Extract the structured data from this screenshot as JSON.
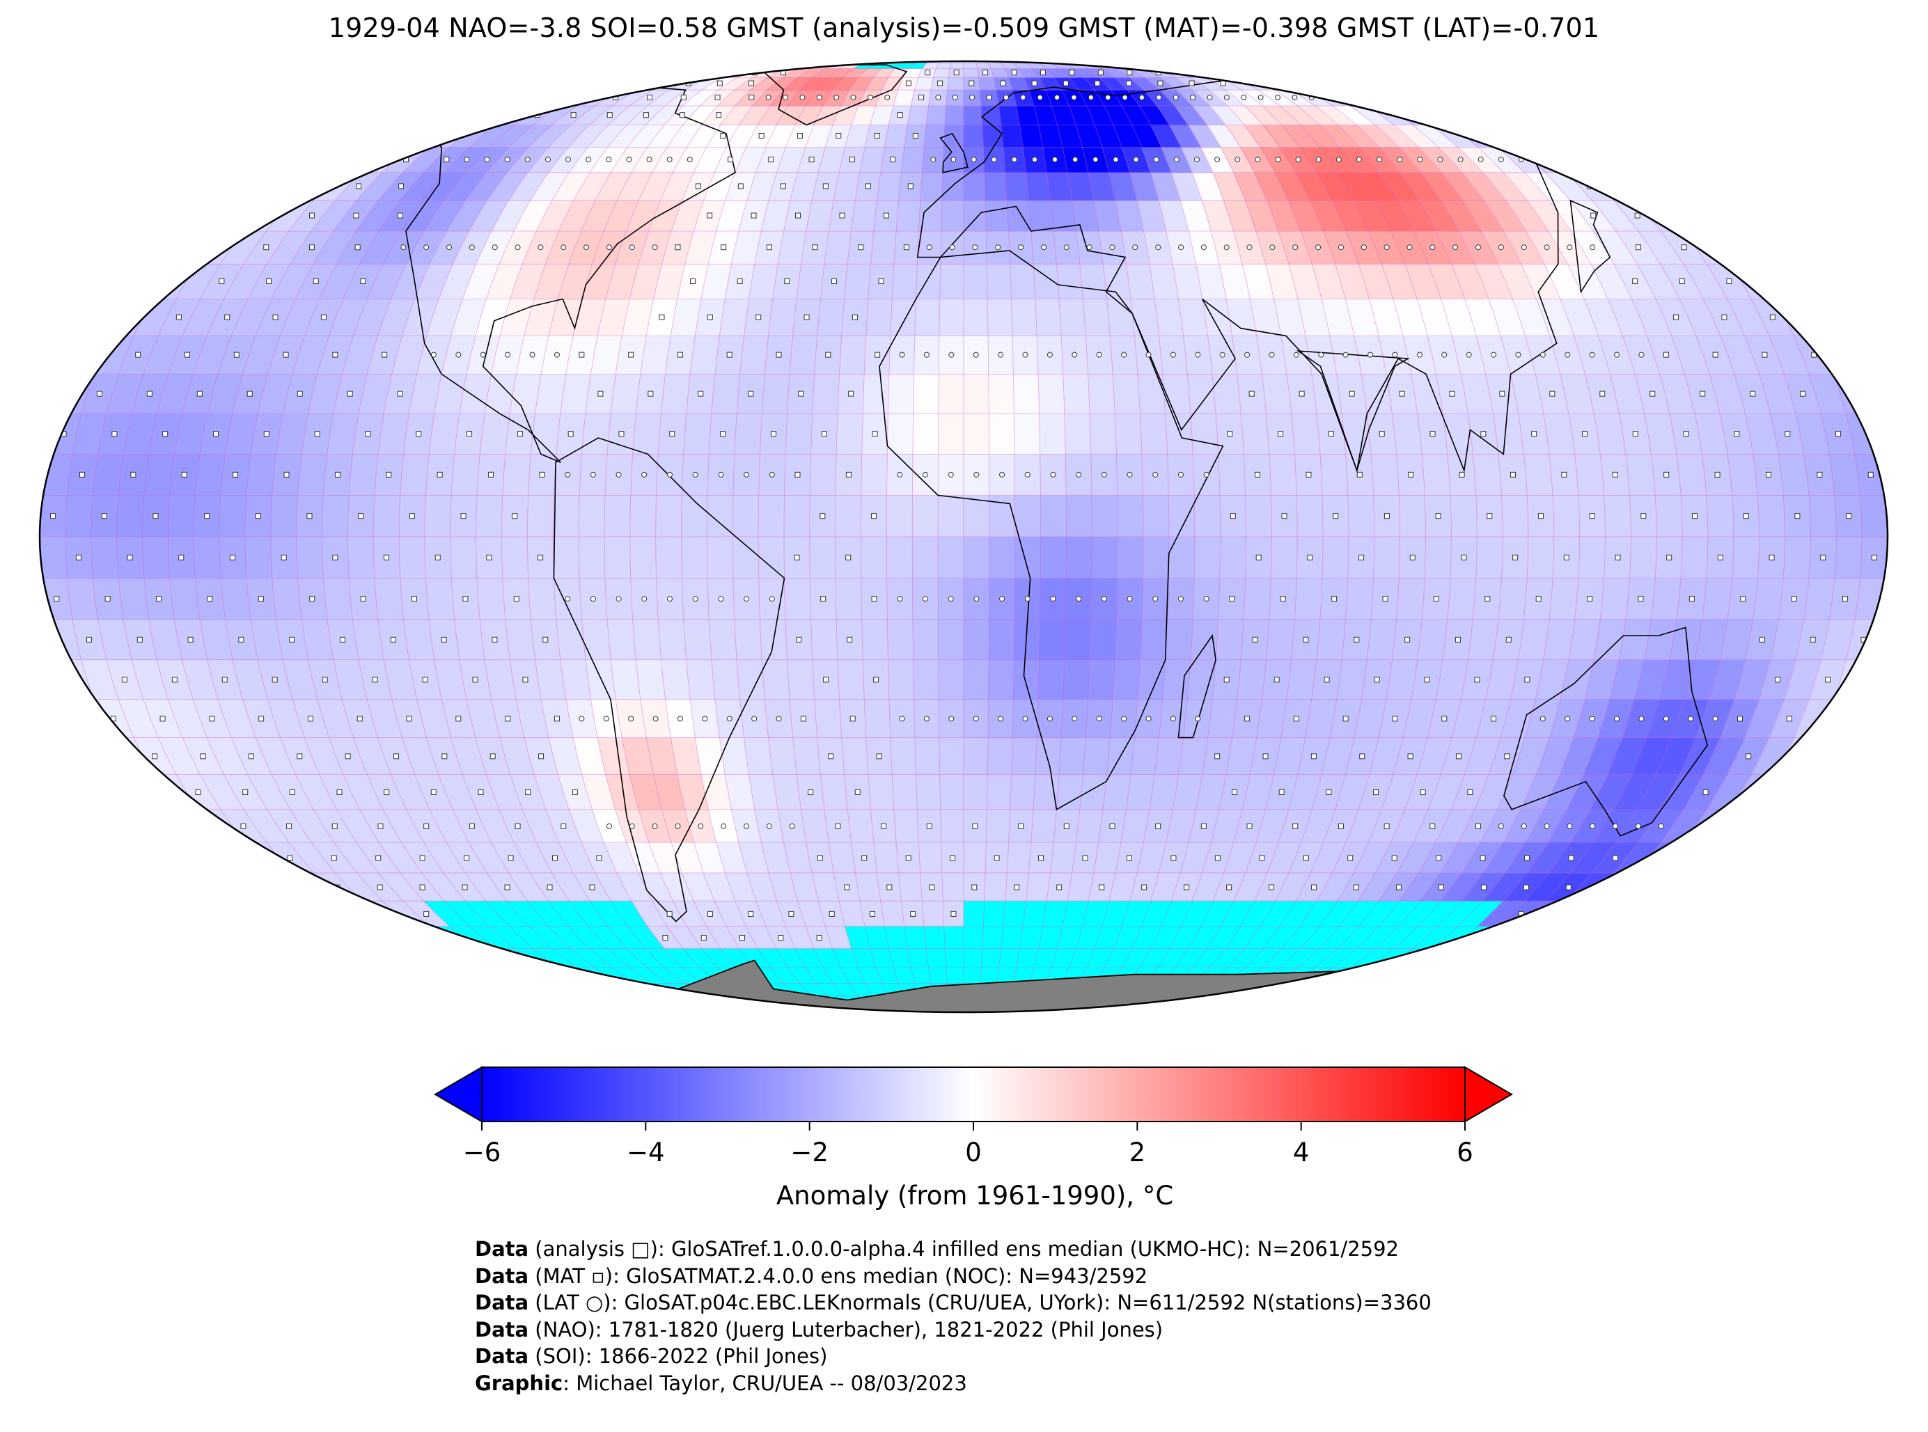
{
  "title": "1929-04 NAO=-3.8 SOI=0.58 GMST (analysis)=-0.509 GMST (MAT)=-0.398 GMST (LAT)=-0.701",
  "colors": {
    "cold_extreme": "#0000ff",
    "neutral": "#ffffff",
    "warm_extreme": "#ff0000",
    "missing_ocean": "#00ffff",
    "land_ice": "#808080",
    "grid": "#cc66cc",
    "coastline": "#000000"
  },
  "colorbar": {
    "ticks": [
      "−6",
      "−4",
      "−2",
      "0",
      "2",
      "4",
      "6"
    ],
    "tick_values": [
      -6,
      -4,
      -2,
      0,
      2,
      4,
      6
    ],
    "range": [
      -6,
      6
    ],
    "label": "Anomaly (from 1961-1990), °C",
    "extend": "both"
  },
  "legend": {
    "grid_analysis": "analysis □",
    "marine_marker": "MAT ▫",
    "station_marker": "LAT ○"
  },
  "credits": [
    {
      "key": "Data",
      "text": " (analysis □): GloSATref.1.0.0.0-alpha.4 infilled ens median (UKMO-HC): N=2061/2592"
    },
    {
      "key": "Data",
      "text": " (MAT ▫): GloSATMAT.2.4.0.0 ens median (NOC): N=943/2592"
    },
    {
      "key": "Data",
      "text": " (LAT ○): GloSAT.p04c.EBC.LEKnormals (CRU/UEA, UYork): N=611/2592 N(stations)=3360"
    },
    {
      "key": "Data",
      "text": " (NAO): 1781-1820 (Juerg Luterbacher), 1821-2022 (Phil Jones)"
    },
    {
      "key": "Data",
      "text": " (SOI): 1866-2022 (Phil Jones)"
    },
    {
      "key": "Graphic",
      "text": ": Michael Taylor, CRU/UEA -- 08/03/2023"
    }
  ],
  "regions": {
    "cold": [
      "Northern Europe",
      "Western Russia",
      "North America west coast",
      "Eastern Australia",
      "Southern Ocean south of Australia",
      "Central Africa",
      "Siberia"
    ],
    "warm": [
      "Greenland",
      "Eastern United States",
      "Central Asia",
      "Northern China",
      "Argentina",
      "West Africa"
    ],
    "missing": [
      "Southern Ocean",
      "Antarctic margin"
    ]
  }
}
